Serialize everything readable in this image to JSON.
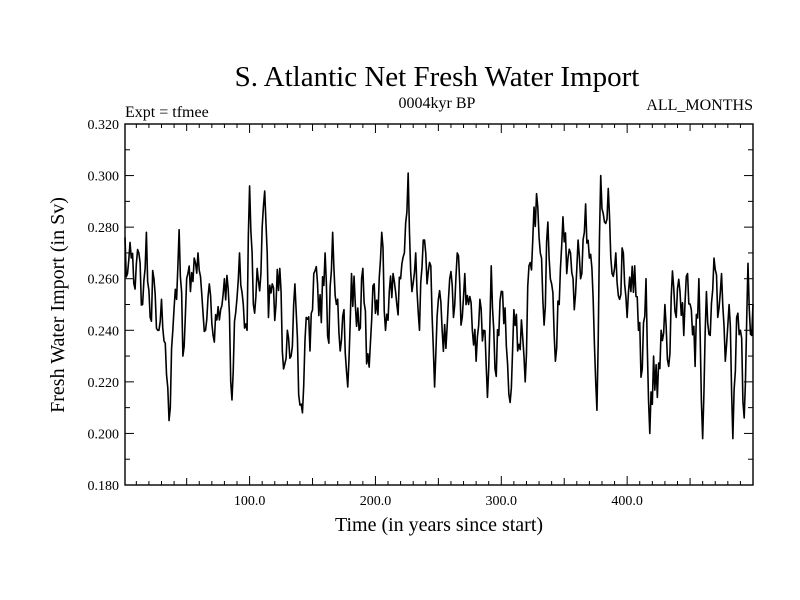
{
  "chart_data": {
    "type": "line",
    "title": "S. Atlantic Net Fresh Water Import",
    "subtitle_left": "Expt = tfmee",
    "subtitle_center": "0004kyr BP",
    "subtitle_right": "ALL_MONTHS",
    "xlabel": "Time (in years since start)",
    "ylabel": "Fresh Water Import (in Sv)",
    "xlim": [
      1,
      500
    ],
    "ylim": [
      0.18,
      0.32
    ],
    "x_ticks": [
      100,
      200,
      300,
      400
    ],
    "x_tick_labels": [
      "100.0",
      "200.0",
      "300.0",
      "400.0"
    ],
    "y_ticks": [
      0.18,
      0.2,
      0.22,
      0.24,
      0.26,
      0.28,
      0.3,
      0.32
    ],
    "y_tick_labels": [
      "0.180",
      "0.200",
      "0.220",
      "0.240",
      "0.260",
      "0.280",
      "0.300",
      "0.320"
    ],
    "grid": false,
    "line_color": "#000000",
    "series": [
      {
        "x_start": 1,
        "x_step": 1,
        "anchors": [
          [
            1,
            0.276
          ],
          [
            3,
            0.262
          ],
          [
            6,
            0.268
          ],
          [
            9,
            0.256
          ],
          [
            12,
            0.27
          ],
          [
            15,
            0.25
          ],
          [
            18,
            0.278
          ],
          [
            21,
            0.245
          ],
          [
            24,
            0.26
          ],
          [
            27,
            0.24
          ],
          [
            30,
            0.252
          ],
          [
            33,
            0.235
          ],
          [
            36,
            0.205
          ],
          [
            39,
            0.24
          ],
          [
            42,
            0.252
          ],
          [
            44,
            0.279
          ],
          [
            47,
            0.23
          ],
          [
            50,
            0.26
          ],
          [
            53,
            0.255
          ],
          [
            56,
            0.268
          ],
          [
            59,
            0.27
          ],
          [
            62,
            0.254
          ],
          [
            65,
            0.24
          ],
          [
            68,
            0.258
          ],
          [
            71,
            0.238
          ],
          [
            74,
            0.244
          ],
          [
            77,
            0.248
          ],
          [
            80,
            0.26
          ],
          [
            83,
            0.256
          ],
          [
            86,
            0.213
          ],
          [
            89,
            0.247
          ],
          [
            92,
            0.27
          ],
          [
            95,
            0.25
          ],
          [
            98,
            0.24
          ],
          [
            100,
            0.296
          ],
          [
            103,
            0.25
          ],
          [
            106,
            0.264
          ],
          [
            109,
            0.262
          ],
          [
            112,
            0.294
          ],
          [
            115,
            0.245
          ],
          [
            118,
            0.258
          ],
          [
            121,
            0.25
          ],
          [
            124,
            0.264
          ],
          [
            127,
            0.225
          ],
          [
            130,
            0.24
          ],
          [
            133,
            0.23
          ],
          [
            136,
            0.258
          ],
          [
            139,
            0.215
          ],
          [
            142,
            0.208
          ],
          [
            145,
            0.245
          ],
          [
            148,
            0.232
          ],
          [
            151,
            0.262
          ],
          [
            154,
            0.258
          ],
          [
            157,
            0.243
          ],
          [
            160,
            0.27
          ],
          [
            163,
            0.235
          ],
          [
            166,
            0.278
          ],
          [
            169,
            0.25
          ],
          [
            172,
            0.232
          ],
          [
            175,
            0.248
          ],
          [
            178,
            0.218
          ],
          [
            181,
            0.262
          ],
          [
            184,
            0.25
          ],
          [
            187,
            0.24
          ],
          [
            190,
            0.264
          ],
          [
            193,
            0.227
          ],
          [
            196,
            0.235
          ],
          [
            199,
            0.258
          ],
          [
            202,
            0.246
          ],
          [
            205,
            0.278
          ],
          [
            208,
            0.24
          ],
          [
            211,
            0.255
          ],
          [
            214,
            0.262
          ],
          [
            217,
            0.25
          ],
          [
            220,
            0.26
          ],
          [
            223,
            0.27
          ],
          [
            226,
            0.301
          ],
          [
            229,
            0.255
          ],
          [
            232,
            0.27
          ],
          [
            235,
            0.24
          ],
          [
            238,
            0.275
          ],
          [
            241,
            0.258
          ],
          [
            244,
            0.265
          ],
          [
            247,
            0.218
          ],
          [
            250,
            0.252
          ],
          [
            253,
            0.24
          ],
          [
            256,
            0.233
          ],
          [
            259,
            0.26
          ],
          [
            262,
            0.245
          ],
          [
            265,
            0.27
          ],
          [
            268,
            0.242
          ],
          [
            271,
            0.262
          ],
          [
            274,
            0.25
          ],
          [
            277,
            0.24
          ],
          [
            280,
            0.228
          ],
          [
            283,
            0.252
          ],
          [
            286,
            0.24
          ],
          [
            289,
            0.214
          ],
          [
            292,
            0.265
          ],
          [
            295,
            0.225
          ],
          [
            298,
            0.238
          ],
          [
            301,
            0.255
          ],
          [
            304,
            0.234
          ],
          [
            307,
            0.212
          ],
          [
            310,
            0.248
          ],
          [
            313,
            0.232
          ],
          [
            316,
            0.244
          ],
          [
            319,
            0.22
          ],
          [
            322,
            0.265
          ],
          [
            325,
            0.275
          ],
          [
            328,
            0.293
          ],
          [
            331,
            0.27
          ],
          [
            334,
            0.242
          ],
          [
            337,
            0.282
          ],
          [
            340,
            0.258
          ],
          [
            343,
            0.228
          ],
          [
            346,
            0.25
          ],
          [
            349,
            0.284
          ],
          [
            352,
            0.262
          ],
          [
            355,
            0.27
          ],
          [
            358,
            0.248
          ],
          [
            361,
            0.275
          ],
          [
            364,
            0.262
          ],
          [
            367,
            0.289
          ],
          [
            370,
            0.268
          ],
          [
            373,
            0.252
          ],
          [
            376,
            0.209
          ],
          [
            379,
            0.3
          ],
          [
            382,
            0.282
          ],
          [
            385,
            0.295
          ],
          [
            388,
            0.262
          ],
          [
            391,
            0.27
          ],
          [
            394,
            0.252
          ],
          [
            397,
            0.27
          ],
          [
            400,
            0.245
          ],
          [
            403,
            0.255
          ],
          [
            406,
            0.265
          ],
          [
            409,
            0.24
          ],
          [
            412,
            0.225
          ],
          [
            415,
            0.26
          ],
          [
            418,
            0.2
          ],
          [
            421,
            0.23
          ],
          [
            424,
            0.214
          ],
          [
            427,
            0.24
          ],
          [
            430,
            0.25
          ],
          [
            433,
            0.226
          ],
          [
            436,
            0.263
          ],
          [
            439,
            0.245
          ],
          [
            442,
            0.255
          ],
          [
            445,
            0.238
          ],
          [
            448,
            0.262
          ],
          [
            451,
            0.248
          ],
          [
            454,
            0.226
          ],
          [
            457,
            0.26
          ],
          [
            460,
            0.198
          ],
          [
            463,
            0.255
          ],
          [
            466,
            0.238
          ],
          [
            469,
            0.268
          ],
          [
            472,
            0.245
          ],
          [
            475,
            0.262
          ],
          [
            478,
            0.228
          ],
          [
            481,
            0.25
          ],
          [
            484,
            0.198
          ],
          [
            487,
            0.245
          ],
          [
            490,
            0.24
          ],
          [
            493,
            0.206
          ],
          [
            496,
            0.266
          ],
          [
            499,
            0.238
          ],
          [
            500,
            0.25
          ]
        ]
      }
    ]
  }
}
